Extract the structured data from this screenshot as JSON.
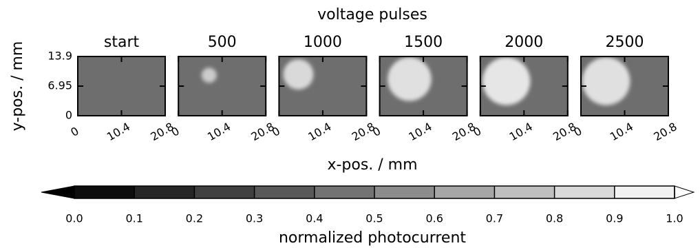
{
  "chart_data": {
    "type": "heatmap-panels",
    "title": "voltage pulses",
    "xlabel": "x-pos. / mm",
    "ylabel": "y-pos. / mm",
    "xlim": [
      0,
      20.8
    ],
    "ylim": [
      0,
      13.9
    ],
    "xticks": [
      0,
      10.4,
      20.8
    ],
    "yticks": [
      0,
      6.95,
      13.9
    ],
    "panels": [
      {
        "title": "start",
        "background": 0.43
      },
      {
        "title": "500",
        "background": 0.43,
        "spot": {
          "x": 7.3,
          "y": 9.5,
          "r": 1.8,
          "value": 0.8
        }
      },
      {
        "title": "1000",
        "background": 0.43,
        "spot": {
          "x": 4.6,
          "y": 9.7,
          "r": 3.6,
          "value": 0.85
        }
      },
      {
        "title": "1500",
        "background": 0.43,
        "spot": {
          "x": 7.1,
          "y": 8.6,
          "r": 5.2,
          "value": 0.88
        }
      },
      {
        "title": "2000",
        "background": 0.43,
        "spot": {
          "x": 6.2,
          "y": 8.1,
          "r": 5.7,
          "value": 0.9
        }
      },
      {
        "title": "2500",
        "background": 0.43,
        "spot": {
          "x": 6.0,
          "y": 8.1,
          "r": 5.7,
          "value": 0.88
        }
      }
    ],
    "colorbar": {
      "label": "normalized photocurrent",
      "lim": [
        0,
        1
      ],
      "extend": "both",
      "ticks": [
        {
          "value": 0,
          "label": "0.0"
        },
        0.1,
        0.2,
        0.3,
        0.4,
        0.5,
        0.6,
        0.7,
        0.8,
        0.9,
        {
          "value": 1,
          "label": "1.0"
        }
      ]
    }
  }
}
